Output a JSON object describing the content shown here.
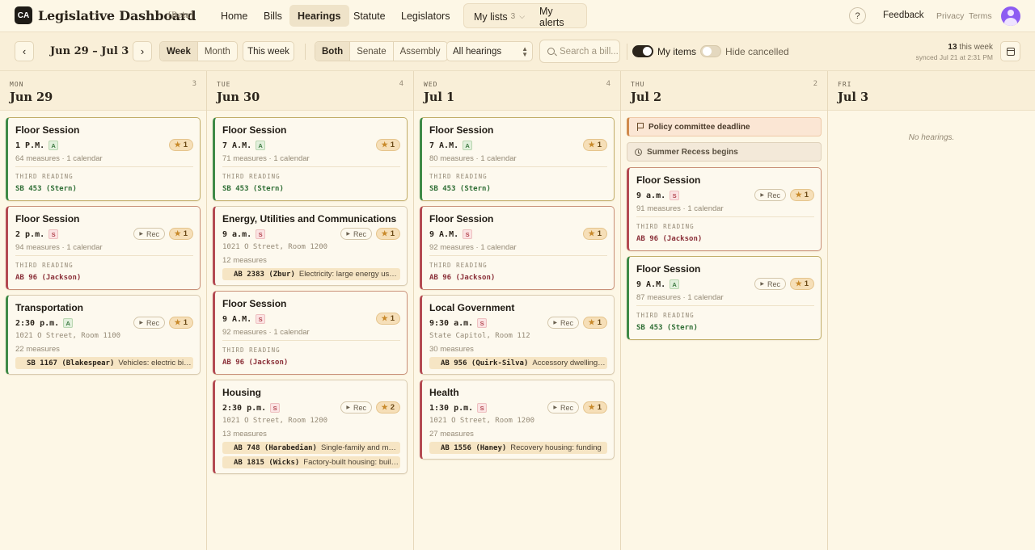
{
  "app": {
    "logo": "CA",
    "title": "Legislative Dashboard",
    "beta": "[Beta]"
  },
  "nav": {
    "home": "Home",
    "bills": "Bills",
    "hearings": "Hearings",
    "statute": "Statute",
    "legislators": "Legislators",
    "my_lists": "My lists",
    "my_lists_count": "3",
    "my_alerts": "My alerts"
  },
  "top": {
    "help": "?",
    "feedback": "Feedback",
    "privacy": "Privacy",
    "terms": "Terms"
  },
  "toolbar": {
    "prev": "‹",
    "next": "›",
    "date_range": "Jun 29 – Jul 3",
    "view_week": "Week",
    "view_month": "Month",
    "this_week": "This week",
    "chamber_both": "Both",
    "chamber_senate": "Senate",
    "chamber_assembly": "Assembly",
    "filter_selected": "All hearings",
    "search_placeholder": "Search a bill...",
    "my_items": "My items",
    "hide_cancelled": "Hide cancelled",
    "week_count": "13",
    "week_count_label": " this week",
    "synced": "synced Jul 21 at 2:31 PM"
  },
  "columns": [
    {
      "dow": "MON",
      "date": "Jun 29",
      "count": "3",
      "cards": [
        {
          "title": "Floor Session",
          "time": "1 P.M.",
          "chamber": "A",
          "stars": "1",
          "meta": "64 measures · 1 calendar",
          "reading_label": "THIRD READING",
          "reading_bill": "SB 453 (Stern)"
        },
        {
          "title": "Floor Session",
          "time": "2 p.m.",
          "chamber": "S",
          "rec": "Rec",
          "stars": "1",
          "meta": "94 measures · 1 calendar",
          "reading_label": "THIRD READING",
          "reading_bill": "AB 96 (Jackson)"
        },
        {
          "title": "Transportation",
          "time": "2:30 p.m.",
          "chamber": "A",
          "rec": "Rec",
          "stars": "1",
          "location": "1021 O Street, Room 1100",
          "meta": "22 measures",
          "bills": [
            {
              "code": "SB 1167 (Blakespear)",
              "desc": "Vehicles: electric bicy..."
            }
          ]
        }
      ]
    },
    {
      "dow": "TUE",
      "date": "Jun 30",
      "count": "4",
      "cards": [
        {
          "title": "Floor Session",
          "time": "7 A.M.",
          "chamber": "A",
          "stars": "1",
          "meta": "71 measures · 1 calendar",
          "reading_label": "THIRD READING",
          "reading_bill": "SB 453 (Stern)"
        },
        {
          "title": "Energy, Utilities and Communications",
          "time": "9 a.m.",
          "chamber": "S",
          "rec": "Rec",
          "stars": "1",
          "location": "1021 O Street, Room 1200",
          "meta": "12 measures",
          "bills": [
            {
              "code": "AB 2383 (Zbur)",
              "desc": "Electricity: large energy use fa..."
            }
          ]
        },
        {
          "title": "Floor Session",
          "time": "9 A.M.",
          "chamber": "S",
          "stars": "1",
          "meta": "92 measures · 1 calendar",
          "reading_label": "THIRD READING",
          "reading_bill": "AB 96 (Jackson)"
        },
        {
          "title": "Housing",
          "time": "2:30 p.m.",
          "chamber": "S",
          "rec": "Rec",
          "stars": "2",
          "location": "1021 O Street, Room 1200",
          "meta": "13 measures",
          "bills": [
            {
              "code": "AB 748 (Harabedian)",
              "desc": "Single-family and multif..."
            },
            {
              "code": "AB 1815 (Wicks)",
              "desc": "Factory-built housing: buildin..."
            }
          ]
        }
      ]
    },
    {
      "dow": "WED",
      "date": "Jul 1",
      "count": "4",
      "cards": [
        {
          "title": "Floor Session",
          "time": "7 A.M.",
          "chamber": "A",
          "stars": "1",
          "meta": "80 measures · 1 calendar",
          "reading_label": "THIRD READING",
          "reading_bill": "SB 453 (Stern)"
        },
        {
          "title": "Floor Session",
          "time": "9 A.M.",
          "chamber": "S",
          "stars": "1",
          "meta": "92 measures · 1 calendar",
          "reading_label": "THIRD READING",
          "reading_bill": "AB 96 (Jackson)"
        },
        {
          "title": "Local Government",
          "time": "9:30 a.m.",
          "chamber": "S",
          "rec": "Rec",
          "stars": "1",
          "location": "State Capitol, Room 112",
          "meta": "30 measures",
          "bills": [
            {
              "code": "AB 956 (Quirk-Silva)",
              "desc": "Accessory dwelling u..."
            }
          ]
        },
        {
          "title": "Health",
          "time": "1:30 p.m.",
          "chamber": "S",
          "rec": "Rec",
          "stars": "1",
          "location": "1021 O Street, Room 1200",
          "meta": "27 measures",
          "bills": [
            {
              "code": "AB 1556 (Haney)",
              "desc": "Recovery housing: funding"
            }
          ]
        }
      ]
    },
    {
      "dow": "THU",
      "date": "Jul 2",
      "count": "2",
      "events": [
        {
          "type": "deadline",
          "label": "Policy committee deadline"
        },
        {
          "type": "recess",
          "label": "Summer Recess begins"
        }
      ],
      "cards": [
        {
          "title": "Floor Session",
          "time": "9 a.m.",
          "chamber": "S",
          "rec": "Rec",
          "stars": "1",
          "meta": "91 measures · 1 calendar",
          "reading_label": "THIRD READING",
          "reading_bill": "AB 96 (Jackson)"
        },
        {
          "title": "Floor Session",
          "time": "9 A.M.",
          "chamber": "A",
          "rec": "Rec",
          "stars": "1",
          "meta": "87 measures · 1 calendar",
          "reading_label": "THIRD READING",
          "reading_bill": "SB 453 (Stern)"
        }
      ]
    },
    {
      "dow": "FRI",
      "date": "Jul 3",
      "count": "",
      "empty": "No hearings.",
      "cards": []
    }
  ],
  "colors": {
    "assembly": "#3f8a47",
    "senate": "#b44a52",
    "accent": "#efe3c9"
  }
}
